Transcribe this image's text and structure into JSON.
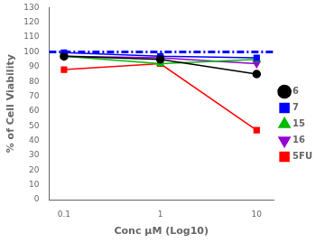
{
  "chart_data": {
    "type": "line",
    "x": [
      0.1,
      1,
      10
    ],
    "series": [
      {
        "name": "6",
        "color": "#000000",
        "marker": "circle",
        "values": [
          97,
          95,
          85
        ]
      },
      {
        "name": "7",
        "color": "#0000FF",
        "marker": "square",
        "values": [
          99.5,
          97,
          96
        ]
      },
      {
        "name": "15",
        "color": "#00BB00",
        "marker": "triangle-up",
        "values": [
          97,
          92,
          95
        ]
      },
      {
        "name": "16",
        "color": "#9400D3",
        "marker": "triangle-down",
        "values": [
          97,
          96,
          92
        ]
      },
      {
        "name": "5FU",
        "color": "#FF0000",
        "marker": "square",
        "values": [
          88,
          92,
          47
        ]
      }
    ],
    "hlines": [
      {
        "y": 100,
        "color": "#0000FF",
        "line_style": "dashdot"
      }
    ],
    "xlabel": "Conc μM (Log10)",
    "ylabel": "% of Cell Viability",
    "log": "x",
    "xlim": [
      0.07,
      15
    ],
    "xticks": [
      0.1,
      1,
      10
    ],
    "ylim": [
      0,
      130
    ],
    "yticks": [
      0,
      10,
      20,
      30,
      40,
      50,
      60,
      70,
      80,
      90,
      100,
      110,
      120,
      130
    ],
    "grid": false,
    "legend": "right"
  }
}
